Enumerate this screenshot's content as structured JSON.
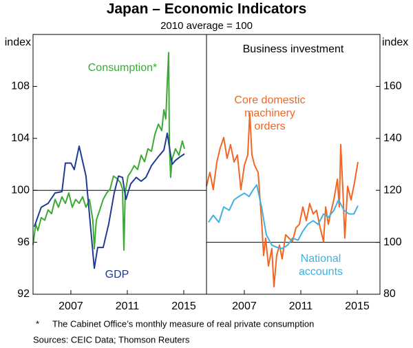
{
  "title": "Japan – Economic Indicators",
  "subtitle": "2010 average = 100",
  "footnote": {
    "marker": "*",
    "text": "The Cabinet Office’s monthly measure of real private consumption"
  },
  "sources": "Sources:  CEIC Data; Thomson Reuters",
  "chart_data": [
    {
      "type": "line",
      "y_label": "index",
      "y_axis_side": "left",
      "xlim": [
        2004.32,
        2016.61
      ],
      "xticks": [
        2007,
        2011,
        2015
      ],
      "ylim": [
        92,
        112
      ],
      "yticks": [
        92,
        96,
        100,
        104,
        108
      ],
      "ref_line": 100,
      "series": [
        {
          "name": "Consumption*",
          "color": "#3aaa35",
          "x": [
            2004.32,
            2004.51,
            2004.66,
            2004.9,
            2005.15,
            2005.39,
            2005.63,
            2005.88,
            2006.12,
            2006.37,
            2006.61,
            2006.85,
            2007.1,
            2007.34,
            2007.59,
            2007.83,
            2008.07,
            2008.32,
            2008.56,
            2008.66,
            2008.8,
            2009.05,
            2009.29,
            2009.54,
            2009.78,
            2010.02,
            2010.27,
            2010.51,
            2010.66,
            2010.76,
            2010.85,
            2011.05,
            2011.24,
            2011.49,
            2011.73,
            2011.98,
            2012.22,
            2012.46,
            2012.71,
            2012.95,
            2013.2,
            2013.44,
            2013.59,
            2013.73,
            2013.83,
            2013.93,
            2013.98,
            2014.07,
            2014.17,
            2014.41,
            2014.66,
            2014.9,
            2015.05
          ],
          "values": [
            95.8,
            97.4,
            96.9,
            97.9,
            97.7,
            98.5,
            98.2,
            99.3,
            98.7,
            99.5,
            99.0,
            99.8,
            98.7,
            99.3,
            99.0,
            99.5,
            98.7,
            99.3,
            97.7,
            95.5,
            97.7,
            98.5,
            99.3,
            99.8,
            100.1,
            101.1,
            100.9,
            100.6,
            100.1,
            95.4,
            99.8,
            101.1,
            101.4,
            101.9,
            101.6,
            102.7,
            102.2,
            103.2,
            103.0,
            104.3,
            105.1,
            104.6,
            106.2,
            105.5,
            108.3,
            110.6,
            103.5,
            101.0,
            102.4,
            103.2,
            102.7,
            103.8,
            103.2
          ]
        },
        {
          "name": "GDP",
          "color": "#1f3a93",
          "x": [
            2004.41,
            2004.9,
            2005.39,
            2005.88,
            2006.37,
            2006.61,
            2007.0,
            2007.24,
            2007.59,
            2008.07,
            2008.66,
            2008.9,
            2009.29,
            2009.68,
            2010.07,
            2010.37,
            2010.66,
            2010.9,
            2011.24,
            2011.63,
            2011.98,
            2012.32,
            2012.71,
            2013.2,
            2013.59,
            2013.83,
            2014.17,
            2014.41,
            2014.76,
            2015.05
          ],
          "values": [
            97.2,
            98.7,
            99.0,
            99.8,
            99.9,
            102.1,
            102.1,
            101.6,
            103.4,
            101.1,
            94.0,
            95.6,
            95.6,
            97.4,
            99.8,
            101.1,
            101.0,
            99.3,
            100.5,
            101.0,
            100.7,
            101.0,
            101.9,
            102.6,
            103.1,
            104.4,
            102.0,
            102.3,
            102.6,
            102.8
          ]
        }
      ]
    },
    {
      "type": "line",
      "title": "Business investment",
      "y_label": "index",
      "y_axis_side": "right",
      "xlim": [
        2004.32,
        2016.61
      ],
      "xticks": [
        2007,
        2011,
        2015
      ],
      "ylim": [
        80,
        180
      ],
      "yticks": [
        80,
        100,
        120,
        140,
        160
      ],
      "ref_line": 100,
      "series": [
        {
          "name": "Core domestic\nmachinery\norders",
          "color": "#f26522",
          "x": [
            2004.32,
            2004.56,
            2004.8,
            2005.05,
            2005.29,
            2005.54,
            2005.78,
            2006.02,
            2006.27,
            2006.51,
            2006.76,
            2007.0,
            2007.24,
            2007.39,
            2007.54,
            2007.73,
            2007.98,
            2008.22,
            2008.37,
            2008.51,
            2008.71,
            2008.95,
            2009.1,
            2009.29,
            2009.49,
            2009.68,
            2009.93,
            2010.17,
            2010.41,
            2010.66,
            2010.9,
            2011.15,
            2011.39,
            2011.63,
            2011.88,
            2012.12,
            2012.37,
            2012.61,
            2012.76,
            2012.95,
            2013.1,
            2013.34,
            2013.59,
            2013.73,
            2013.83,
            2013.98,
            2014.12,
            2014.32,
            2014.56,
            2014.8,
            2015.05
          ],
          "values": [
            121.6,
            126.9,
            120.3,
            130.9,
            136.3,
            140.3,
            132.3,
            137.6,
            130.9,
            133.6,
            120.3,
            129.6,
            133.6,
            149.6,
            133.6,
            129.6,
            126.9,
            108.3,
            94.9,
            101.6,
            90.9,
            97.6,
            82.9,
            94.9,
            98.9,
            93.6,
            102.9,
            101.6,
            100.3,
            105.6,
            106.9,
            113.6,
            108.3,
            114.9,
            110.9,
            112.3,
            105.6,
            100.3,
            113.6,
            106.9,
            110.9,
            116.3,
            124.3,
            113.6,
            137.6,
            120.3,
            101.6,
            121.6,
            116.3,
            122.9,
            130.9
          ]
        },
        {
          "name": "National\naccounts",
          "color": "#3fb0e0",
          "x": [
            2004.46,
            2004.8,
            2005.2,
            2005.54,
            2005.93,
            2006.27,
            2006.61,
            2007.0,
            2007.34,
            2007.63,
            2007.88,
            2008.22,
            2008.56,
            2008.95,
            2009.29,
            2009.68,
            2010.07,
            2010.41,
            2010.8,
            2011.15,
            2011.49,
            2011.88,
            2012.22,
            2012.61,
            2012.95,
            2013.34,
            2013.68,
            2014.07,
            2014.41,
            2014.76,
            2015.05
          ],
          "values": [
            107.7,
            110.4,
            107.7,
            113.6,
            112.3,
            116.3,
            117.6,
            118.9,
            117.6,
            120.3,
            122.1,
            113.6,
            102.9,
            98.9,
            98.1,
            97.6,
            98.9,
            101.6,
            100.8,
            104.3,
            106.9,
            108.3,
            106.9,
            110.9,
            109.6,
            112.3,
            116.3,
            112.3,
            110.9,
            110.9,
            114.1
          ]
        }
      ]
    }
  ]
}
